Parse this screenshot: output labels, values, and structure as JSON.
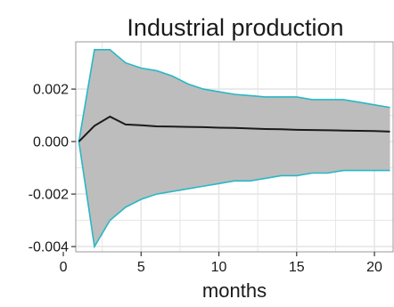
{
  "chart_data": {
    "type": "line",
    "title": "Industrial production",
    "xlabel": "months",
    "ylabel": "",
    "xlim": [
      0.8,
      21.2
    ],
    "ylim": [
      -0.0042,
      0.0038
    ],
    "grid": true,
    "x_ticks": [
      0,
      5,
      10,
      15,
      20
    ],
    "x_tick_labels": [
      "0",
      "5",
      "10",
      "15",
      "20"
    ],
    "y_ticks": [
      0.002,
      0.0,
      -0.002,
      -0.004
    ],
    "y_tick_labels": [
      "0.002",
      "0.000",
      "-0.002",
      "-0.004"
    ],
    "x": [
      1,
      2,
      3,
      4,
      5,
      6,
      7,
      8,
      9,
      10,
      11,
      12,
      13,
      14,
      15,
      16,
      17,
      18,
      19,
      20,
      21
    ],
    "series": [
      {
        "role": "upper",
        "values": [
          0.0,
          0.0035,
          0.0035,
          0.003,
          0.0028,
          0.0027,
          0.0025,
          0.0022,
          0.002,
          0.0019,
          0.0018,
          0.00175,
          0.0017,
          0.0017,
          0.0017,
          0.0016,
          0.0016,
          0.0016,
          0.0015,
          0.0014,
          0.0013
        ]
      },
      {
        "role": "point",
        "values": [
          0.0,
          0.0006,
          0.00095,
          0.00065,
          0.00062,
          0.00058,
          0.00057,
          0.00056,
          0.00055,
          0.00053,
          0.00052,
          0.0005,
          0.00048,
          0.00047,
          0.00045,
          0.00044,
          0.00043,
          0.00042,
          0.00041,
          0.0004,
          0.00038
        ]
      },
      {
        "role": "lower",
        "values": [
          0.0,
          -0.004,
          -0.003,
          -0.0025,
          -0.0022,
          -0.002,
          -0.0019,
          -0.0018,
          -0.0017,
          -0.0016,
          -0.0015,
          -0.0015,
          -0.0014,
          -0.0013,
          -0.0013,
          -0.0012,
          -0.0012,
          -0.0011,
          -0.0011,
          -0.0011,
          -0.0011
        ]
      }
    ],
    "colors": {
      "band_fill": "#bdbdbd",
      "band_border": "#2ab7c4",
      "line": "#1a1a1a",
      "grid": "#e6e6e6",
      "panel_border": "#999999",
      "background": "#ffffff"
    }
  }
}
